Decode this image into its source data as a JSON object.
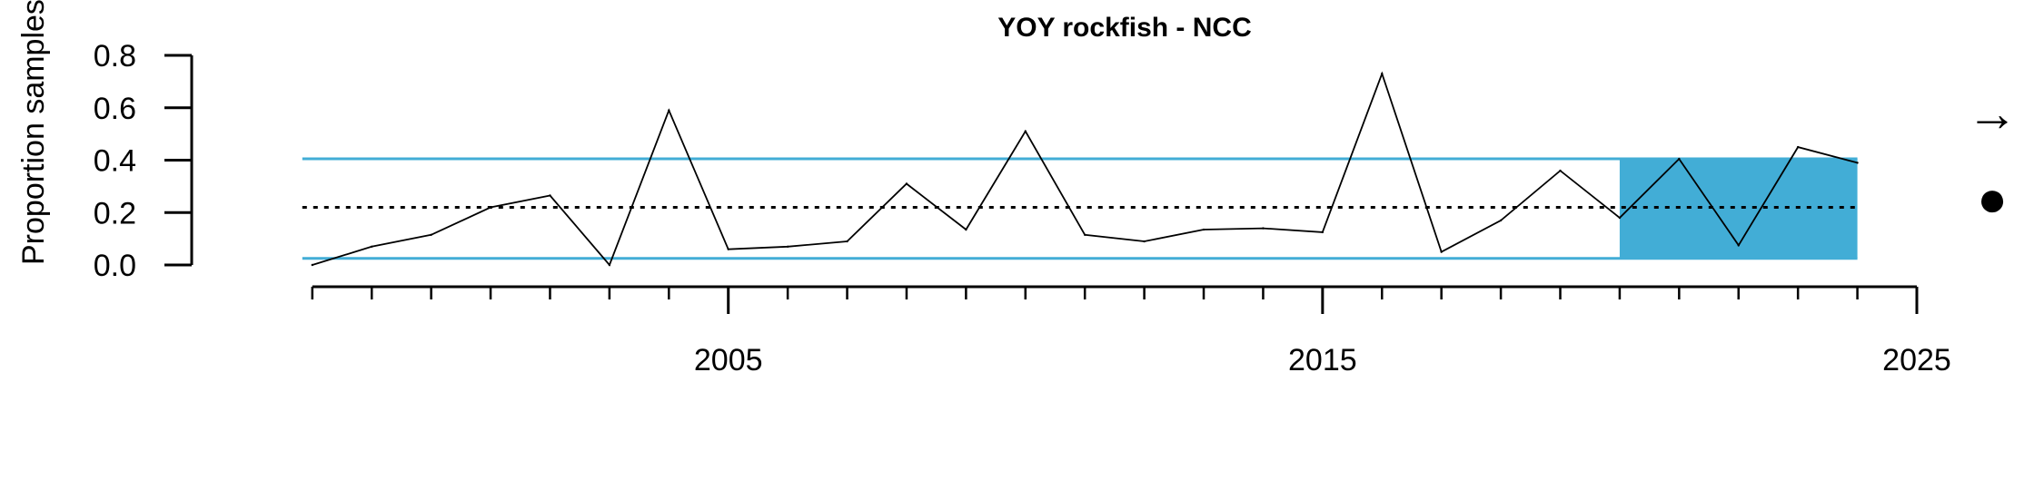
{
  "chart_data": {
    "type": "line",
    "title": "YOY rockfish - NCC",
    "ylabel": "Proportion samples prese",
    "xlabel": "",
    "xlim": [
      1997.3,
      2025
    ],
    "ylim": [
      0.0,
      0.8
    ],
    "x_ticks_minor": [
      1998,
      1999,
      2000,
      2001,
      2002,
      2003,
      2004,
      2005,
      2006,
      2007,
      2008,
      2009,
      2010,
      2011,
      2012,
      2013,
      2014,
      2015,
      2016,
      2017,
      2018,
      2019,
      2020,
      2021,
      2022,
      2023,
      2024,
      2025
    ],
    "x_tick_labels": [
      {
        "value": 2005,
        "label": "2005"
      },
      {
        "value": 2015,
        "label": "2015"
      },
      {
        "value": 2025,
        "label": "2025"
      }
    ],
    "y_ticks": [
      {
        "value": 0.0,
        "label": "0.0"
      },
      {
        "value": 0.2,
        "label": "0.2"
      },
      {
        "value": 0.4,
        "label": "0.4"
      },
      {
        "value": 0.6,
        "label": "0.6"
      },
      {
        "value": 0.8,
        "label": "0.8"
      }
    ],
    "series": [
      {
        "x": [
          1998,
          1999,
          2000,
          2001,
          2002,
          2003,
          2004,
          2005,
          2006,
          2007,
          2008,
          2009,
          2010,
          2011,
          2012,
          2013,
          2014,
          2015,
          2016,
          2017,
          2018,
          2019,
          2020,
          2021,
          2022,
          2023,
          2024
        ],
        "values": [
          0.0,
          0.07,
          0.115,
          0.22,
          0.265,
          0.0,
          0.59,
          0.06,
          0.07,
          0.09,
          0.31,
          0.135,
          0.51,
          0.115,
          0.09,
          0.135,
          0.14,
          0.125,
          0.73,
          0.05,
          0.17,
          0.36,
          0.18,
          0.405,
          0.075,
          0.45,
          0.39
        ]
      }
    ],
    "mean": 0.22,
    "upper_sd": 0.405,
    "lower_sd": 0.025,
    "highlight_x_range": [
      2020,
      2024
    ],
    "colors": {
      "line": "#000000",
      "band": "#42ADD6",
      "mean": "#000000"
    },
    "trend_symbol": "→",
    "status_symbol": "●"
  }
}
